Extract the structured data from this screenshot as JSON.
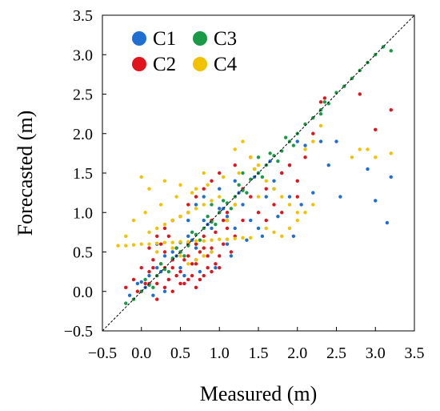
{
  "chart_data": {
    "type": "scatter",
    "xlabel": "Measured (m)",
    "ylabel": "Forecasted (m)",
    "xlim": [
      -0.5,
      3.5
    ],
    "ylim": [
      -0.5,
      3.5
    ],
    "xticks": [
      "−0.5",
      "0.0",
      "0.5",
      "1.0",
      "1.5",
      "2.0",
      "2.5",
      "3.0",
      "3.5"
    ],
    "yticks": [
      "−0.5",
      "0.0",
      "0.5",
      "1.0",
      "1.5",
      "2.0",
      "2.5",
      "3.0",
      "3.5"
    ],
    "reference_line": "y = x (dashed)",
    "grid": false,
    "legend_position": "top-left",
    "series": [
      {
        "name": "C1",
        "color": "#1f6fd1",
        "points": [
          [
            -0.15,
            -0.05
          ],
          [
            0.0,
            0.12
          ],
          [
            0.1,
            0.2
          ],
          [
            0.2,
            0.3
          ],
          [
            0.3,
            0.45
          ],
          [
            0.4,
            0.5
          ],
          [
            0.5,
            0.62
          ],
          [
            0.6,
            0.7
          ],
          [
            0.7,
            0.55
          ],
          [
            0.8,
            0.9
          ],
          [
            0.9,
            0.8
          ],
          [
            1.0,
            1.05
          ],
          [
            1.1,
            0.95
          ],
          [
            1.2,
            0.8
          ],
          [
            1.3,
            1.1
          ],
          [
            1.4,
            0.9
          ],
          [
            1.5,
            0.8
          ],
          [
            1.6,
            1.2
          ],
          [
            1.7,
            1.4
          ],
          [
            1.8,
            1.5
          ],
          [
            1.9,
            1.6
          ],
          [
            2.0,
            1.9
          ],
          [
            2.05,
            1.1
          ],
          [
            2.1,
            1.85
          ],
          [
            2.2,
            1.25
          ],
          [
            2.3,
            1.9
          ],
          [
            2.4,
            1.6
          ],
          [
            2.5,
            1.9
          ],
          [
            2.55,
            1.2
          ],
          [
            2.9,
            1.55
          ],
          [
            3.0,
            1.15
          ],
          [
            3.15,
            0.87
          ],
          [
            3.2,
            1.45
          ],
          [
            0.3,
            0.0
          ],
          [
            0.5,
            0.3
          ],
          [
            0.7,
            0.4
          ],
          [
            0.9,
            0.5
          ],
          [
            1.1,
            0.6
          ],
          [
            0.2,
            0.6
          ],
          [
            0.4,
            0.9
          ],
          [
            0.6,
            1.0
          ],
          [
            0.8,
            1.2
          ],
          [
            1.0,
            1.3
          ],
          [
            1.2,
            1.4
          ],
          [
            0.05,
            0.05
          ],
          [
            0.25,
            0.25
          ],
          [
            0.45,
            0.45
          ],
          [
            0.65,
            0.65
          ],
          [
            0.85,
            0.85
          ],
          [
            1.05,
            1.05
          ],
          [
            1.25,
            1.25
          ],
          [
            1.45,
            1.45
          ],
          [
            1.65,
            1.65
          ],
          [
            1.35,
            0.65
          ],
          [
            1.55,
            0.7
          ],
          [
            1.75,
            0.95
          ],
          [
            1.95,
            0.7
          ],
          [
            -0.05,
            0.1
          ],
          [
            0.15,
            -0.05
          ],
          [
            0.35,
            0.15
          ],
          [
            0.55,
            0.2
          ],
          [
            0.75,
            0.25
          ],
          [
            0.95,
            0.3
          ],
          [
            1.15,
            0.45
          ],
          [
            0.6,
            0.9
          ],
          [
            0.7,
            1.1
          ],
          [
            1.5,
            1.5
          ],
          [
            1.7,
            1.3
          ],
          [
            1.9,
            1.2
          ]
        ]
      },
      {
        "name": "C2",
        "color": "#e0141c",
        "points": [
          [
            -0.2,
            0.05
          ],
          [
            -0.1,
            0.15
          ],
          [
            0.0,
            0.3
          ],
          [
            0.05,
            0.1
          ],
          [
            0.1,
            0.25
          ],
          [
            0.15,
            0.4
          ],
          [
            0.2,
            0.2
          ],
          [
            0.25,
            0.35
          ],
          [
            0.3,
            0.5
          ],
          [
            0.35,
            0.15
          ],
          [
            0.4,
            0.3
          ],
          [
            0.45,
            0.55
          ],
          [
            0.5,
            0.25
          ],
          [
            0.55,
            0.4
          ],
          [
            0.6,
            0.6
          ],
          [
            0.65,
            0.2
          ],
          [
            0.7,
            0.35
          ],
          [
            0.75,
            0.5
          ],
          [
            0.8,
            0.7
          ],
          [
            0.85,
            0.3
          ],
          [
            0.9,
            0.55
          ],
          [
            0.95,
            0.75
          ],
          [
            1.0,
            0.45
          ],
          [
            1.05,
            0.9
          ],
          [
            1.1,
            1.0
          ],
          [
            1.2,
            0.7
          ],
          [
            1.3,
            0.9
          ],
          [
            1.4,
            1.2
          ],
          [
            1.5,
            1.0
          ],
          [
            1.6,
            1.3
          ],
          [
            1.7,
            1.1
          ],
          [
            1.8,
            1.5
          ],
          [
            1.9,
            1.6
          ],
          [
            2.0,
            1.4
          ],
          [
            2.1,
            1.7
          ],
          [
            2.2,
            2.0
          ],
          [
            2.3,
            2.4
          ],
          [
            2.35,
            2.45
          ],
          [
            2.8,
            2.5
          ],
          [
            3.0,
            2.05
          ],
          [
            3.2,
            2.3
          ],
          [
            0.2,
            -0.1
          ],
          [
            0.3,
            0.05
          ],
          [
            0.4,
            0.0
          ],
          [
            0.5,
            0.1
          ],
          [
            0.6,
            0.15
          ],
          [
            0.7,
            0.05
          ],
          [
            0.8,
            0.2
          ],
          [
            0.9,
            0.25
          ],
          [
            1.0,
            0.3
          ],
          [
            0.1,
            0.55
          ],
          [
            0.2,
            0.7
          ],
          [
            0.3,
            0.8
          ],
          [
            0.4,
            0.9
          ],
          [
            0.5,
            0.95
          ],
          [
            0.6,
            1.1
          ],
          [
            0.7,
            1.2
          ],
          [
            0.8,
            1.3
          ],
          [
            0.9,
            1.4
          ],
          [
            1.0,
            1.5
          ],
          [
            1.2,
            1.6
          ],
          [
            1.4,
            1.7
          ],
          [
            0.0,
            0.0
          ],
          [
            0.1,
            0.1
          ],
          [
            0.2,
            0.1
          ],
          [
            0.3,
            0.3
          ],
          [
            0.4,
            0.4
          ],
          [
            0.5,
            0.5
          ],
          [
            0.6,
            0.45
          ],
          [
            0.7,
            0.6
          ],
          [
            0.8,
            0.55
          ],
          [
            0.9,
            0.9
          ],
          [
            1.0,
            1.0
          ],
          [
            1.1,
            0.8
          ],
          [
            1.2,
            1.1
          ],
          [
            1.3,
            1.3
          ],
          [
            1.6,
            0.9
          ],
          [
            1.8,
            1.0
          ],
          [
            2.0,
            1.2
          ],
          [
            0.45,
            0.2
          ],
          [
            0.55,
            0.1
          ],
          [
            0.65,
            0.35
          ],
          [
            0.75,
            0.15
          ],
          [
            0.85,
            0.45
          ],
          [
            0.95,
            0.35
          ],
          [
            1.05,
            0.6
          ],
          [
            1.15,
            0.5
          ],
          [
            0.25,
            0.6
          ],
          [
            0.35,
            0.7
          ],
          [
            0.15,
            0.3
          ],
          [
            -0.05,
            0.0
          ]
        ]
      },
      {
        "name": "C3",
        "color": "#1a9a48",
        "points": [
          [
            -0.2,
            -0.15
          ],
          [
            -0.1,
            -0.1
          ],
          [
            0.0,
            0.0
          ],
          [
            0.1,
            0.08
          ],
          [
            0.2,
            0.2
          ],
          [
            0.3,
            0.28
          ],
          [
            0.4,
            0.42
          ],
          [
            0.5,
            0.5
          ],
          [
            0.6,
            0.58
          ],
          [
            0.7,
            0.72
          ],
          [
            0.8,
            0.8
          ],
          [
            0.9,
            0.88
          ],
          [
            1.0,
            1.0
          ],
          [
            1.1,
            1.12
          ],
          [
            1.2,
            1.2
          ],
          [
            1.3,
            1.28
          ],
          [
            1.4,
            1.42
          ],
          [
            1.5,
            1.5
          ],
          [
            1.6,
            1.6
          ],
          [
            1.7,
            1.72
          ],
          [
            1.8,
            1.78
          ],
          [
            1.9,
            1.9
          ],
          [
            2.0,
            2.0
          ],
          [
            2.1,
            2.12
          ],
          [
            2.2,
            2.2
          ],
          [
            2.3,
            2.3
          ],
          [
            2.4,
            2.38
          ],
          [
            2.5,
            2.52
          ],
          [
            2.6,
            2.6
          ],
          [
            2.7,
            2.7
          ],
          [
            2.8,
            2.8
          ],
          [
            2.9,
            2.9
          ],
          [
            3.0,
            3.0
          ],
          [
            3.1,
            3.1
          ],
          [
            3.2,
            3.05
          ],
          [
            0.05,
            0.15
          ],
          [
            0.15,
            0.05
          ],
          [
            0.25,
            0.35
          ],
          [
            0.35,
            0.25
          ],
          [
            0.45,
            0.55
          ],
          [
            0.55,
            0.45
          ],
          [
            0.65,
            0.75
          ],
          [
            0.75,
            0.65
          ],
          [
            0.85,
            0.95
          ],
          [
            0.95,
            0.85
          ],
          [
            1.05,
            1.15
          ],
          [
            1.15,
            1.05
          ],
          [
            1.25,
            1.35
          ],
          [
            1.35,
            1.25
          ],
          [
            1.45,
            1.55
          ],
          [
            1.55,
            1.45
          ],
          [
            1.65,
            1.75
          ],
          [
            1.75,
            1.65
          ],
          [
            1.85,
            1.95
          ],
          [
            1.95,
            1.85
          ],
          [
            2.3,
            2.25
          ],
          [
            2.35,
            2.4
          ],
          [
            1.3,
            1.5
          ],
          [
            1.5,
            1.7
          ],
          [
            1.1,
            0.9
          ],
          [
            0.9,
            1.1
          ]
        ]
      },
      {
        "name": "C4",
        "color": "#f2c200",
        "points": [
          [
            -0.3,
            0.58
          ],
          [
            -0.2,
            0.58
          ],
          [
            -0.1,
            0.59
          ],
          [
            0.0,
            0.6
          ],
          [
            0.1,
            0.6
          ],
          [
            0.2,
            0.61
          ],
          [
            0.3,
            0.62
          ],
          [
            0.4,
            0.62
          ],
          [
            0.5,
            0.63
          ],
          [
            0.6,
            0.63
          ],
          [
            0.7,
            0.64
          ],
          [
            0.8,
            0.64
          ],
          [
            0.9,
            0.65
          ],
          [
            1.0,
            0.66
          ],
          [
            1.1,
            0.66
          ],
          [
            1.2,
            0.67
          ],
          [
            1.3,
            0.68
          ],
          [
            1.4,
            0.68
          ],
          [
            0.1,
            0.75
          ],
          [
            0.2,
            0.8
          ],
          [
            0.3,
            0.85
          ],
          [
            0.4,
            0.9
          ],
          [
            0.5,
            0.95
          ],
          [
            0.6,
            1.0
          ],
          [
            0.7,
            1.05
          ],
          [
            0.8,
            1.1
          ],
          [
            0.9,
            1.15
          ],
          [
            1.0,
            1.2
          ],
          [
            0.0,
            1.45
          ],
          [
            0.1,
            1.3
          ],
          [
            0.3,
            1.4
          ],
          [
            0.5,
            1.35
          ],
          [
            0.7,
            1.3
          ],
          [
            0.8,
            1.5
          ],
          [
            1.2,
            1.8
          ],
          [
            1.3,
            1.9
          ],
          [
            1.4,
            1.7
          ],
          [
            1.5,
            1.6
          ],
          [
            1.6,
            1.4
          ],
          [
            1.7,
            1.3
          ],
          [
            1.8,
            1.2
          ],
          [
            1.9,
            1.1
          ],
          [
            2.0,
            1.0
          ],
          [
            1.6,
            0.8
          ],
          [
            1.7,
            0.75
          ],
          [
            1.8,
            0.7
          ],
          [
            1.9,
            0.8
          ],
          [
            2.0,
            0.9
          ],
          [
            2.1,
            1.0
          ],
          [
            2.2,
            1.1
          ],
          [
            1.5,
            1.2
          ],
          [
            1.2,
            1.1
          ],
          [
            1.1,
            0.9
          ],
          [
            0.9,
            0.5
          ],
          [
            0.8,
            0.45
          ],
          [
            0.7,
            0.4
          ],
          [
            0.6,
            0.35
          ],
          [
            0.5,
            0.45
          ],
          [
            2.1,
            1.8
          ],
          [
            2.2,
            1.9
          ],
          [
            2.3,
            2.1
          ],
          [
            2.7,
            1.7
          ],
          [
            2.8,
            1.8
          ],
          [
            2.9,
            1.8
          ],
          [
            3.0,
            1.7
          ],
          [
            3.2,
            1.75
          ],
          [
            0.2,
            0.5
          ],
          [
            0.4,
            0.55
          ],
          [
            -0.1,
            0.9
          ],
          [
            -0.2,
            0.7
          ],
          [
            0.05,
            1.0
          ],
          [
            0.25,
            1.1
          ],
          [
            0.45,
            1.2
          ],
          [
            0.65,
            1.25
          ],
          [
            0.85,
            1.35
          ],
          [
            1.05,
            1.45
          ],
          [
            1.25,
            1.5
          ],
          [
            1.45,
            1.55
          ]
        ]
      }
    ]
  }
}
